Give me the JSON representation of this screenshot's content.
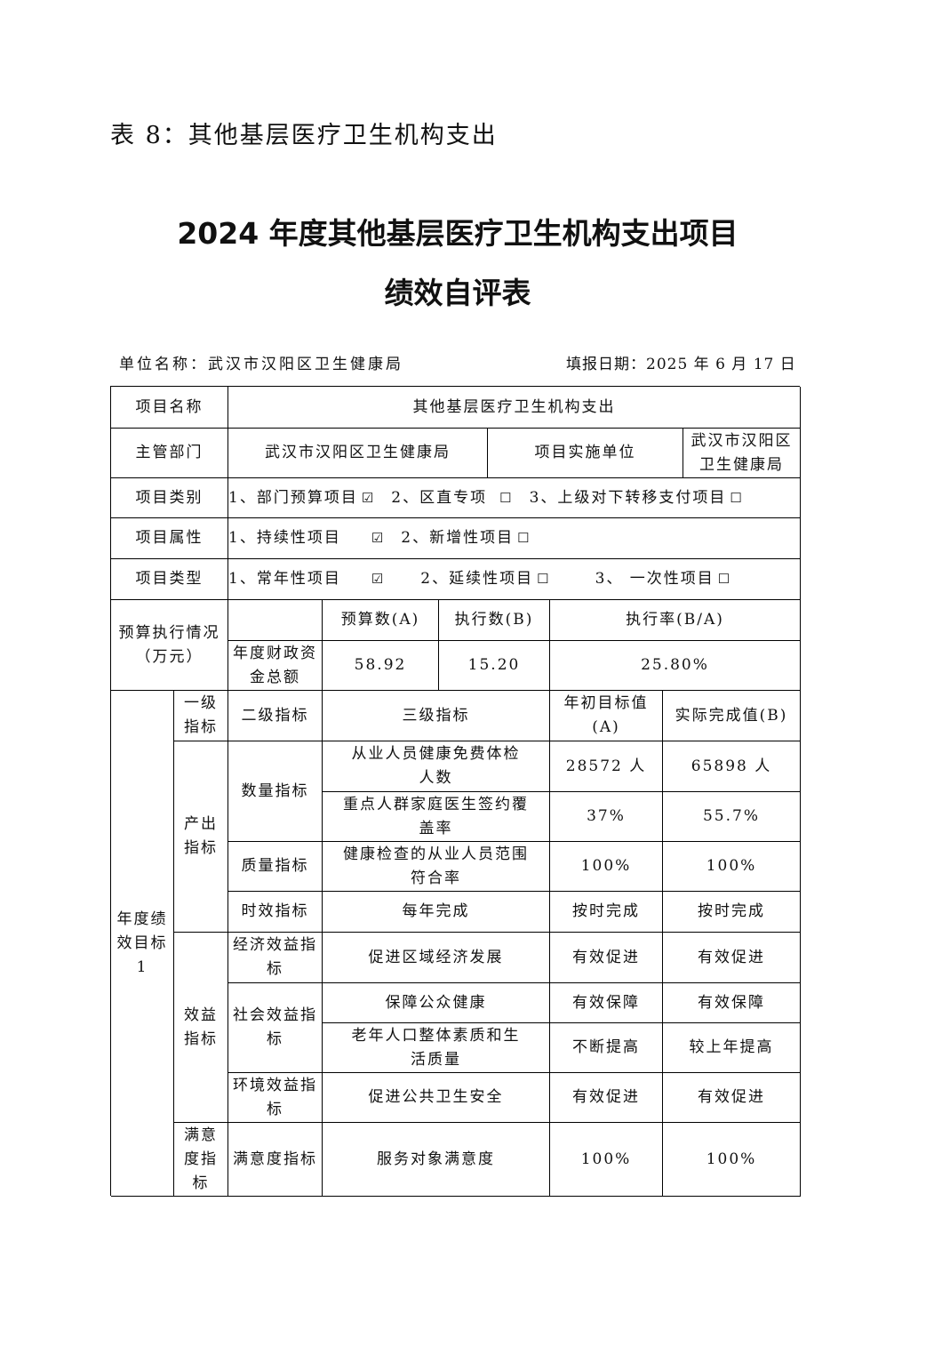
{
  "caption": "表 8：其他基层医疗卫生机构支出",
  "title_line1": "2024 年度其他基层医疗卫生机构支出项目",
  "title_line2": "绩效自评表",
  "unit": "单位名称：武汉市汉阳区卫生健康局",
  "date": "填报日期：2025 年 6 月 17 日",
  "project_name_label": "项目名称",
  "project_name": "其他基层医疗卫生机构支出",
  "dept_label": "主管部门",
  "dept": "武汉市汉阳区卫生健康局",
  "impl_label": "项目实施单位",
  "impl": "武汉市汉阳区卫生健康局",
  "category": {
    "label": "项目类别",
    "options": [
      {
        "text": "1、部门预算项目",
        "box": "☑"
      },
      {
        "text": "2、区直专项",
        "box": "☐"
      },
      {
        "text": "3、上级对下转移支付项目",
        "box": "☐"
      }
    ]
  },
  "attribute": {
    "label": "项目属性",
    "options": [
      {
        "text": "1、持续性项目",
        "box": "☑"
      },
      {
        "text": "2、新增性项目",
        "box": "☐"
      }
    ]
  },
  "type": {
    "label": "项目类型",
    "options": [
      {
        "text": "1、常年性项目",
        "box": "☑"
      },
      {
        "text": "2、延续性项目",
        "box": "☐"
      },
      {
        "text": "3、 一次性项目",
        "box": "☐"
      }
    ]
  },
  "budget": {
    "label": "预算执行情况（万元）",
    "h_budget": "预算数(A)",
    "h_exec": "执行数(B)",
    "h_rate": "执行率(B/A)",
    "row_label": "年度财政资金总额",
    "budget": "58.92",
    "exec": "15.20",
    "rate": "25.80%"
  },
  "perf": {
    "label": "年度绩效目标1",
    "h1": "一级指标",
    "h2": "二级指标",
    "h3": "三级指标",
    "h4": "年初目标值(A)",
    "h5": "实际完成值(B)",
    "output": "产出指标",
    "benefit": "效益指标",
    "satisfaction": "满意度指标",
    "rows": [
      {
        "l2": "数量指标",
        "l3": "从业人员健康免费体检人数",
        "target": "28572 人",
        "actual": "65898 人"
      },
      {
        "l3": "重点人群家庭医生签约覆盖率",
        "target": "37%",
        "actual": "55.7%"
      },
      {
        "l2": "质量指标",
        "l3": "健康检查的从业人员范围符合率",
        "target": "100%",
        "actual": "100%"
      },
      {
        "l2": "时效指标",
        "l3": "每年完成",
        "target": "按时完成",
        "actual": "按时完成"
      },
      {
        "l2": "经济效益指标",
        "l3": "促进区域经济发展",
        "target": "有效促进",
        "actual": "有效促进"
      },
      {
        "l2": "社会效益指标",
        "l3": "保障公众健康",
        "target": "有效保障",
        "actual": "有效保障"
      },
      {
        "l3": "老年人口整体素质和生活质量",
        "target": "不断提高",
        "actual": "较上年提高"
      },
      {
        "l2": "环境效益指标",
        "l3": "促进公共卫生安全",
        "target": "有效促进",
        "actual": "有效促进"
      },
      {
        "l2": "满意度指标",
        "l3": "服务对象满意度",
        "target": "100%",
        "actual": "100%"
      }
    ]
  }
}
